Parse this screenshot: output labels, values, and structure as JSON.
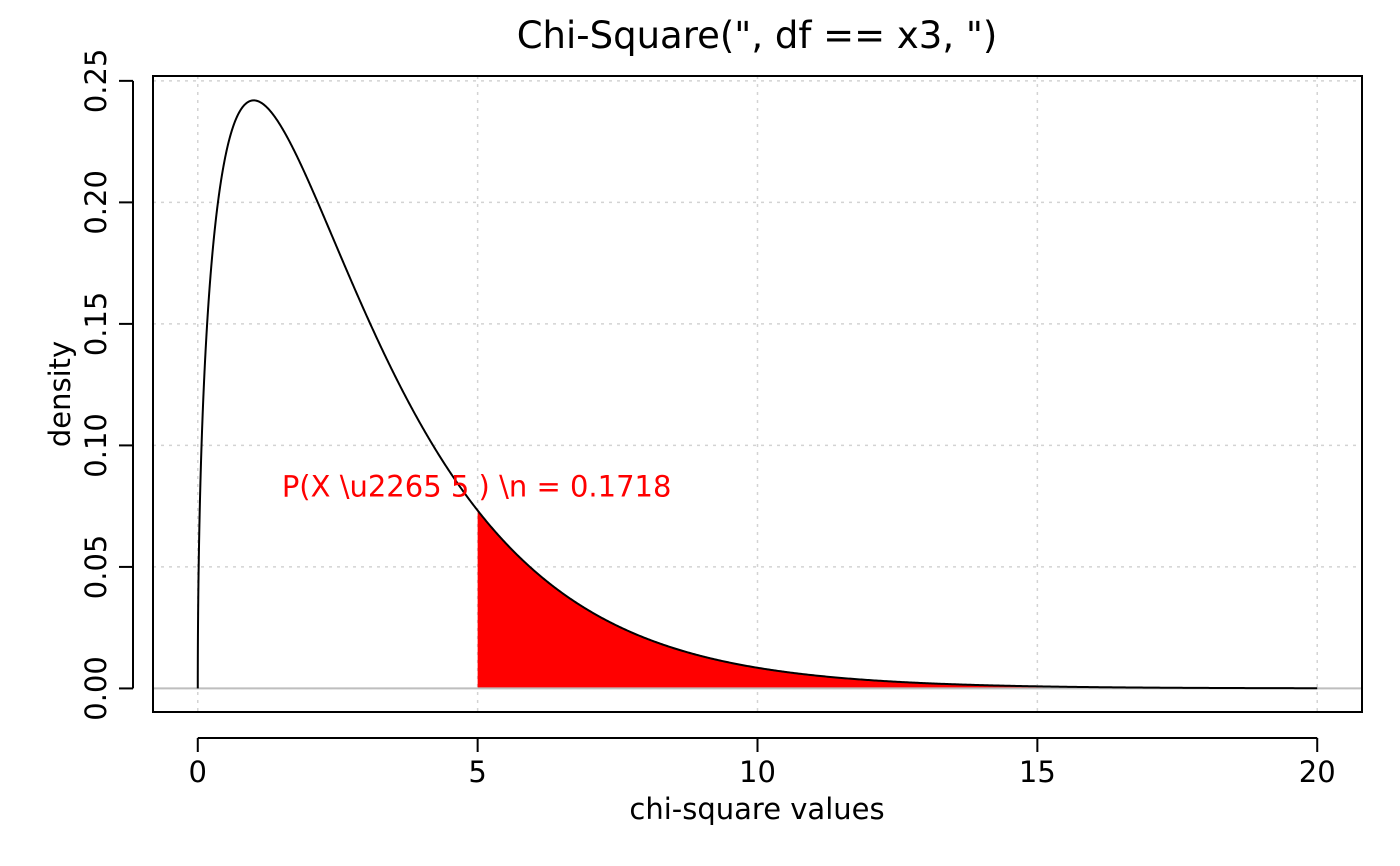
{
  "chart_data": {
    "type": "area",
    "title": "Chi-Square(\", df == x3, \")",
    "xlabel": "chi-square values",
    "ylabel": "density",
    "distribution": "chi-square",
    "df": 3,
    "xlim": [
      -0.8,
      20.8
    ],
    "ylim": [
      -0.0097,
      0.252
    ],
    "x_ticks": [
      0,
      5,
      10,
      15,
      20
    ],
    "x_tick_labels": [
      "0",
      "5",
      "10",
      "15",
      "20"
    ],
    "y_ticks": [
      0.0,
      0.05,
      0.1,
      0.15,
      0.2,
      0.25
    ],
    "y_tick_labels": [
      "0.00",
      "0.05",
      "0.10",
      "0.15",
      "0.20",
      "0.25"
    ],
    "curve_range": [
      0,
      20
    ],
    "shaded_region": {
      "from": 5,
      "to": 20,
      "color": "#ff0000"
    },
    "annotation": {
      "text": "P(X \\u2265 5 ) \\n = 0.1718",
      "x": 5,
      "y": 0.083,
      "color": "#ff0000"
    },
    "grid": true,
    "grid_color": "#d3d3d3",
    "baseline": {
      "y": 0,
      "color": "#bebebe"
    },
    "curve_color": "#000000"
  }
}
